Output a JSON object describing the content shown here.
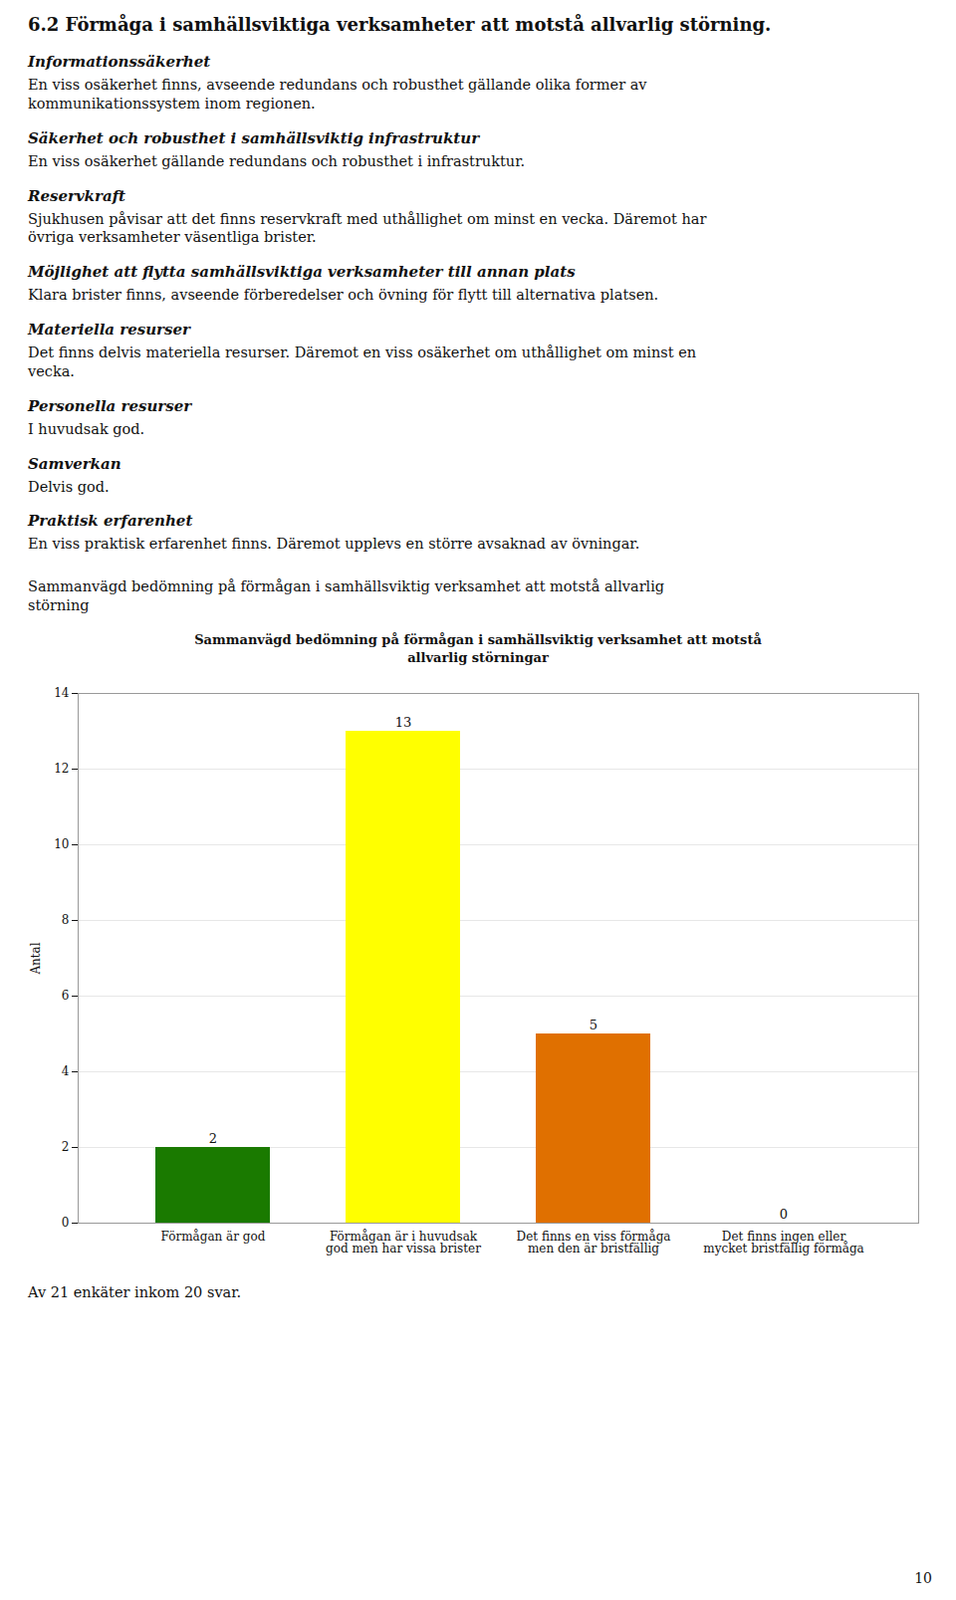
{
  "page_title": "6.2 Förmåga i samhällsviktiga verksamheter att motstå allvarlig störning.",
  "sections": [
    {
      "heading": "Informationssäkerhet",
      "body": "En viss osäkerhet finns, avseende redundans och robusthet gällande olika former av\nkommunikationssystem inom regionen."
    },
    {
      "heading": "Säkerhet och robusthet i samhällsviktig infrastruktur",
      "body": "En viss osäkerhet gällande redundans och robusthet i infrastruktur."
    },
    {
      "heading": "Reservkraft",
      "body": "Sjukhusen påvisar att det finns reservkraft med uthållighet om minst en vecka. Däremot har\növriga verksamheter väsentliga brister."
    },
    {
      "heading": "Möjlighet att flytta samhällsviktiga verksamheter till annan plats",
      "body": "Klara brister finns, avseende förberedelser och övning för flytt till alternativa platsen."
    },
    {
      "heading": "Materiella resurser",
      "body": "Det finns delvis materiella resurser. Däremot en viss osäkerhet om uthållighet om minst en\nvecka."
    },
    {
      "heading": "Personella resurser",
      "body": "I huvudsak god."
    },
    {
      "heading": "Samverkan",
      "body": "Delvis god."
    },
    {
      "heading": "Praktisk erfarenhet",
      "body": "En viss praktisk erfarenhet finns. Däremot upplevs en större avsaknad av övningar."
    }
  ],
  "summary_text": "Sammanvägd bedömning på förmågan i samhällsviktig verksamhet att motstå allvarlig\nstörning",
  "footer_text": "Av 21 enkäter inkom 20 svar.",
  "page_number": "10",
  "chart_data": {
    "type": "bar",
    "title": "Sammanvägd bedömning på förmågan i samhällsviktig verksamhet att motstå\nallvarlig störningar",
    "categories": [
      "Förmågan är god",
      "Förmågan är i huvudsak\ngod men har vissa brister",
      "Det finns en viss förmåga\nmen den är bristfällig",
      "Det finns ingen eller\nmycket bristfällig förmåga"
    ],
    "values": [
      2,
      13,
      5,
      0
    ],
    "colors": [
      "#1a7a00",
      "#ffff00",
      "#e07000",
      "#c0c0c0"
    ],
    "ylabel": "Antal",
    "ylim": [
      0,
      14
    ],
    "yticks": [
      0,
      2,
      4,
      6,
      8,
      10,
      12,
      14
    ],
    "grid": true,
    "data_labels": true
  }
}
